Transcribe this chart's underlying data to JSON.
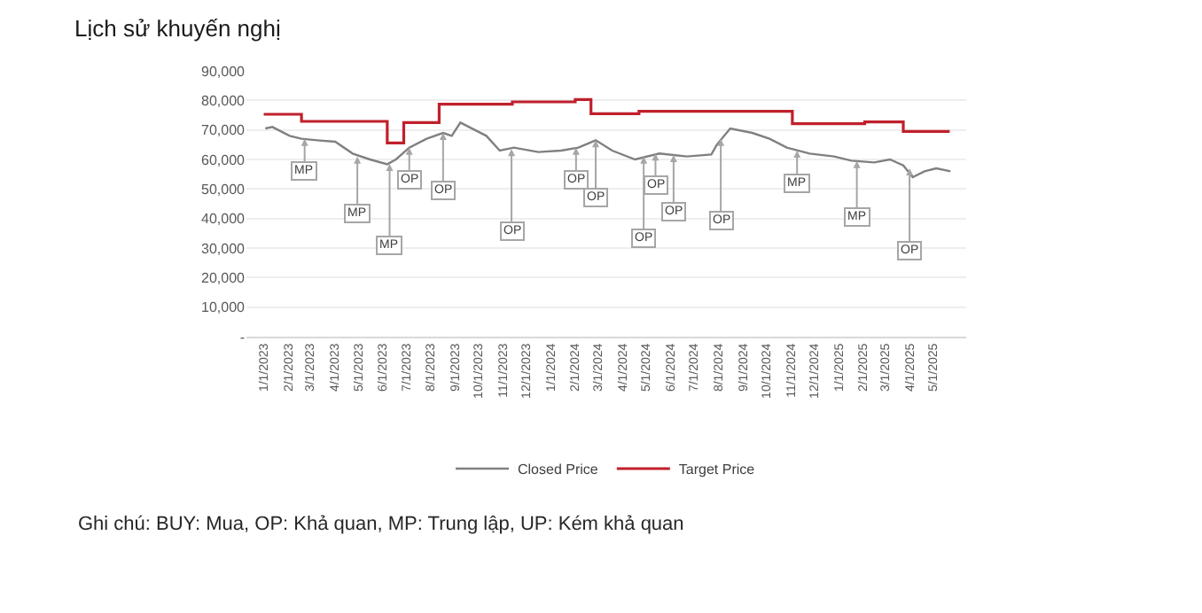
{
  "chart_data": {
    "type": "line",
    "title": "Lịch sử khuyến nghị",
    "series": [
      {
        "name": "Closed Price",
        "color": "#808080",
        "x": [
          "2023-01-03",
          "2023-01-12",
          "2023-02-03",
          "2023-02-18",
          "2023-03-10",
          "2023-04-02",
          "2023-04-24",
          "2023-05-16",
          "2023-06-07",
          "2023-06-18",
          "2023-07-05",
          "2023-07-27",
          "2023-08-17",
          "2023-08-28",
          "2023-09-08",
          "2023-09-19",
          "2023-10-11",
          "2023-10-28",
          "2023-11-15",
          "2023-12-16",
          "2024-01-14",
          "2024-02-05",
          "2024-02-27",
          "2024-03-19",
          "2024-04-17",
          "2024-05-18",
          "2024-06-22",
          "2024-07-23",
          "2024-07-30",
          "2024-08-16",
          "2024-09-13",
          "2024-10-05",
          "2024-10-27",
          "2024-11-25",
          "2024-12-26",
          "2025-01-17",
          "2025-02-15",
          "2025-03-07",
          "2025-03-24",
          "2025-04-05",
          "2025-04-20",
          "2025-05-05",
          "2025-05-23"
        ],
        "values": [
          70500,
          71000,
          68000,
          67000,
          66500,
          66000,
          62000,
          60000,
          58400,
          60000,
          64000,
          67000,
          69000,
          68000,
          72500,
          71000,
          68000,
          63000,
          64000,
          62500,
          63000,
          64000,
          66500,
          63000,
          60000,
          62000,
          61000,
          61700,
          65000,
          70500,
          69000,
          67000,
          64000,
          62000,
          61000,
          59600,
          59000,
          60000,
          58000,
          54000,
          56000,
          57000,
          56000
        ]
      },
      {
        "name": "Target Price",
        "color": "#c0202c",
        "type": "step",
        "x": [
          "2023-01-01",
          "2023-02-18",
          "2023-06-07",
          "2023-06-28",
          "2023-08-12",
          "2023-11-13",
          "2024-02-01",
          "2024-02-21",
          "2024-04-22",
          "2024-11-03",
          "2025-02-03",
          "2025-03-24",
          "2025-05-22"
        ],
        "values": [
          75300,
          72900,
          65600,
          72500,
          78700,
          79500,
          80300,
          75500,
          76300,
          72100,
          72700,
          69500,
          69500
        ]
      }
    ],
    "xlim": [
      "2022-12-10",
      "2025-06-12"
    ],
    "xticks": [
      {
        "value": "2023-01-01",
        "label": "1/1/2023"
      },
      {
        "value": "2023-02-01",
        "label": "2/1/2023"
      },
      {
        "value": "2023-03-01",
        "label": "3/1/2023"
      },
      {
        "value": "2023-04-01",
        "label": "4/1/2023"
      },
      {
        "value": "2023-05-01",
        "label": "5/1/2023"
      },
      {
        "value": "2023-06-01",
        "label": "6/1/2023"
      },
      {
        "value": "2023-07-01",
        "label": "7/1/2023"
      },
      {
        "value": "2023-08-01",
        "label": "8/1/2023"
      },
      {
        "value": "2023-09-01",
        "label": "9/1/2023"
      },
      {
        "value": "2023-10-01",
        "label": "10/1/2023"
      },
      {
        "value": "2023-11-01",
        "label": "11/1/2023"
      },
      {
        "value": "2023-12-01",
        "label": "12/1/2023"
      },
      {
        "value": "2024-01-01",
        "label": "1/1/2024"
      },
      {
        "value": "2024-02-01",
        "label": "2/1/2024"
      },
      {
        "value": "2024-03-01",
        "label": "3/1/2024"
      },
      {
        "value": "2024-04-01",
        "label": "4/1/2024"
      },
      {
        "value": "2024-05-01",
        "label": "5/1/2024"
      },
      {
        "value": "2024-06-01",
        "label": "6/1/2024"
      },
      {
        "value": "2024-07-01",
        "label": "7/1/2024"
      },
      {
        "value": "2024-08-01",
        "label": "8/1/2024"
      },
      {
        "value": "2024-09-01",
        "label": "9/1/2024"
      },
      {
        "value": "2024-10-01",
        "label": "10/1/2024"
      },
      {
        "value": "2024-11-01",
        "label": "11/1/2024"
      },
      {
        "value": "2024-12-01",
        "label": "12/1/2024"
      },
      {
        "value": "2025-01-01",
        "label": "1/1/2025"
      },
      {
        "value": "2025-02-01",
        "label": "2/1/2025"
      },
      {
        "value": "2025-03-01",
        "label": "3/1/2025"
      },
      {
        "value": "2025-04-01",
        "label": "4/1/2025"
      },
      {
        "value": "2025-05-01",
        "label": "5/1/2025"
      }
    ],
    "ylim": [
      0,
      90000
    ],
    "yticks": [
      {
        "value": 0,
        "label": "-"
      },
      {
        "value": 10000,
        "label": "10,000"
      },
      {
        "value": 20000,
        "label": "20,000"
      },
      {
        "value": 30000,
        "label": "30,000"
      },
      {
        "value": 40000,
        "label": "40,000"
      },
      {
        "value": 50000,
        "label": "50,000"
      },
      {
        "value": 60000,
        "label": "60,000"
      },
      {
        "value": 70000,
        "label": "70,000"
      },
      {
        "value": 80000,
        "label": "80,000"
      },
      {
        "value": 90000,
        "label": "90,000"
      }
    ],
    "grid": "y",
    "legend": "bottom",
    "annotations": [
      {
        "text": "MP",
        "x": "2023-02-22",
        "y": 67000
      },
      {
        "text": "MP",
        "x": "2023-04-30",
        "y": 61000
      },
      {
        "text": "MP",
        "x": "2023-06-10",
        "y": 58500
      },
      {
        "text": "OP",
        "x": "2023-07-05",
        "y": 64000
      },
      {
        "text": "OP",
        "x": "2023-08-17",
        "y": 69000
      },
      {
        "text": "OP",
        "x": "2023-11-12",
        "y": 63500
      },
      {
        "text": "OP",
        "x": "2024-02-02",
        "y": 64000
      },
      {
        "text": "OP",
        "x": "2024-02-27",
        "y": 66500
      },
      {
        "text": "OP",
        "x": "2024-04-28",
        "y": 61000
      },
      {
        "text": "OP",
        "x": "2024-05-13",
        "y": 62000
      },
      {
        "text": "OP",
        "x": "2024-06-05",
        "y": 61500
      },
      {
        "text": "OP",
        "x": "2024-08-04",
        "y": 67000
      },
      {
        "text": "MP",
        "x": "2024-11-09",
        "y": 63000
      },
      {
        "text": "MP",
        "x": "2025-01-24",
        "y": 59500
      },
      {
        "text": "OP",
        "x": "2025-04-01",
        "y": 57000
      },
      "Ghi chú: BUY: Mua, OP: Khả quan, MP: Trung lập, UP: Kém khả quan"
    ]
  }
}
